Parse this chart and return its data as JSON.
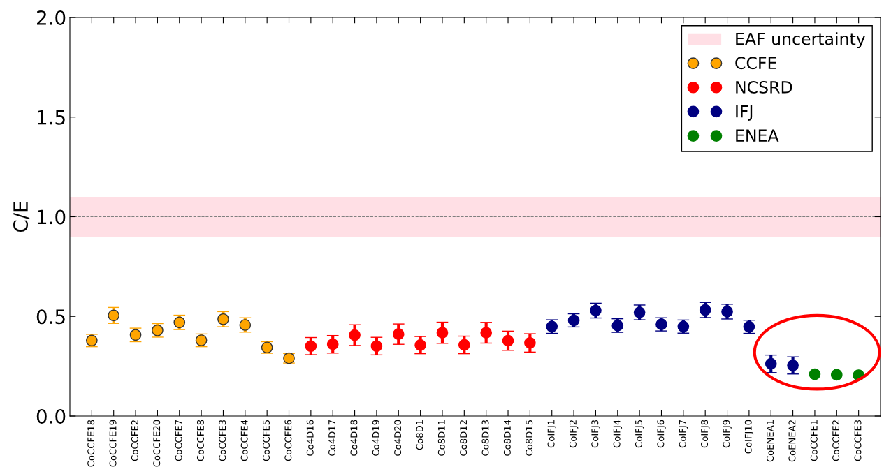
{
  "chart_data": {
    "type": "scatter",
    "ylabel": "C/E",
    "categories": [
      "CoCCFE18",
      "CoCCFE19",
      "CoCCFE2",
      "CoCCFE20",
      "CoCCFE7",
      "CoCCFE8",
      "CoCCFE3",
      "CoCCFE4",
      "CoCCFE5",
      "CoCCFE6",
      "Co4D16",
      "Co4D17",
      "Co4D18",
      "Co4D19",
      "Co4D20",
      "Co8D1",
      "Co8D11",
      "Co8D12",
      "Co8D13",
      "Co8D14",
      "Co8D15",
      "CoIFJ1",
      "CoIFJ2",
      "CoIFJ3",
      "CoIFJ4",
      "CoIFJ5",
      "CoIFJ6",
      "CoIFJ7",
      "CoIFJ8",
      "CoIFJ9",
      "CoIFJ10",
      "CoENEA1",
      "CoENEA2",
      "CoCCFE1",
      "CoCCFE2",
      "CoCCFE3"
    ],
    "series": [
      {
        "name": "CCFE",
        "color": "#ffa500",
        "values": [
          0.379,
          0.505,
          0.407,
          0.43,
          0.47,
          0.38,
          0.486,
          0.457,
          0.344,
          0.29,
          null,
          null,
          null,
          null,
          null,
          null,
          null,
          null,
          null,
          null,
          null,
          null,
          null,
          null,
          null,
          null,
          null,
          null,
          null,
          null,
          null,
          null,
          null,
          null,
          null,
          null
        ],
        "errors": [
          0.031,
          0.04,
          0.034,
          0.034,
          0.036,
          0.032,
          0.038,
          0.036,
          0.029,
          0.024,
          null,
          null,
          null,
          null,
          null,
          null,
          null,
          null,
          null,
          null,
          null,
          null,
          null,
          null,
          null,
          null,
          null,
          null,
          null,
          null,
          null,
          null,
          null,
          null,
          null,
          null
        ]
      },
      {
        "name": "NCSRD",
        "color": "#ff0000",
        "values": [
          null,
          null,
          null,
          null,
          null,
          null,
          null,
          null,
          null,
          null,
          0.351,
          0.36,
          0.406,
          0.351,
          0.411,
          0.356,
          0.418,
          0.357,
          0.418,
          0.378,
          0.367,
          null,
          null,
          null,
          null,
          null,
          null,
          null,
          null,
          null,
          null,
          null,
          null,
          null,
          null,
          null
        ],
        "errors": [
          null,
          null,
          null,
          null,
          null,
          null,
          null,
          null,
          null,
          null,
          0.043,
          0.044,
          0.052,
          0.044,
          0.051,
          0.043,
          0.053,
          0.044,
          0.052,
          0.048,
          0.046,
          null,
          null,
          null,
          null,
          null,
          null,
          null,
          null,
          null,
          null,
          null,
          null,
          null,
          null,
          null
        ]
      },
      {
        "name": "IFJ",
        "color": "#000080",
        "values": [
          null,
          null,
          null,
          null,
          null,
          null,
          null,
          null,
          null,
          null,
          null,
          null,
          null,
          null,
          null,
          null,
          null,
          null,
          null,
          null,
          null,
          0.449,
          0.48,
          0.529,
          0.454,
          0.52,
          0.46,
          0.449,
          0.532,
          0.524,
          0.448,
          0.262,
          0.254,
          null,
          null,
          null
        ],
        "errors": [
          null,
          null,
          null,
          null,
          null,
          null,
          null,
          null,
          null,
          null,
          null,
          null,
          null,
          null,
          null,
          null,
          null,
          null,
          null,
          null,
          null,
          0.034,
          0.033,
          0.037,
          0.034,
          0.037,
          0.033,
          0.033,
          0.038,
          0.037,
          0.033,
          0.044,
          0.043,
          null,
          null,
          null
        ]
      },
      {
        "name": "ENEA",
        "color": "#008000",
        "values": [
          null,
          null,
          null,
          null,
          null,
          null,
          null,
          null,
          null,
          null,
          null,
          null,
          null,
          null,
          null,
          null,
          null,
          null,
          null,
          null,
          null,
          null,
          null,
          null,
          null,
          null,
          null,
          null,
          null,
          null,
          null,
          null,
          null,
          0.21,
          0.207,
          0.205
        ]
      }
    ],
    "ylim": [
      0.0,
      2.0
    ],
    "yticks": [
      {
        "value": 0.0,
        "label": "0.0"
      },
      {
        "value": 0.5,
        "label": "0.5"
      },
      {
        "value": 1.0,
        "label": "1.0"
      },
      {
        "value": 1.5,
        "label": "1.5"
      },
      {
        "value": 2.0,
        "label": "2.0"
      }
    ],
    "ref_lines": [
      {
        "axis": "y",
        "value": 1.0,
        "color": "#808080",
        "line_style": "dashed"
      }
    ],
    "bands": [
      {
        "axis": "y",
        "from": 0.9,
        "to": 1.1,
        "label": "EAF uncertainty",
        "color": "#ffc0cb"
      }
    ],
    "marker": "circle",
    "legend": "top right",
    "grid": false
  }
}
